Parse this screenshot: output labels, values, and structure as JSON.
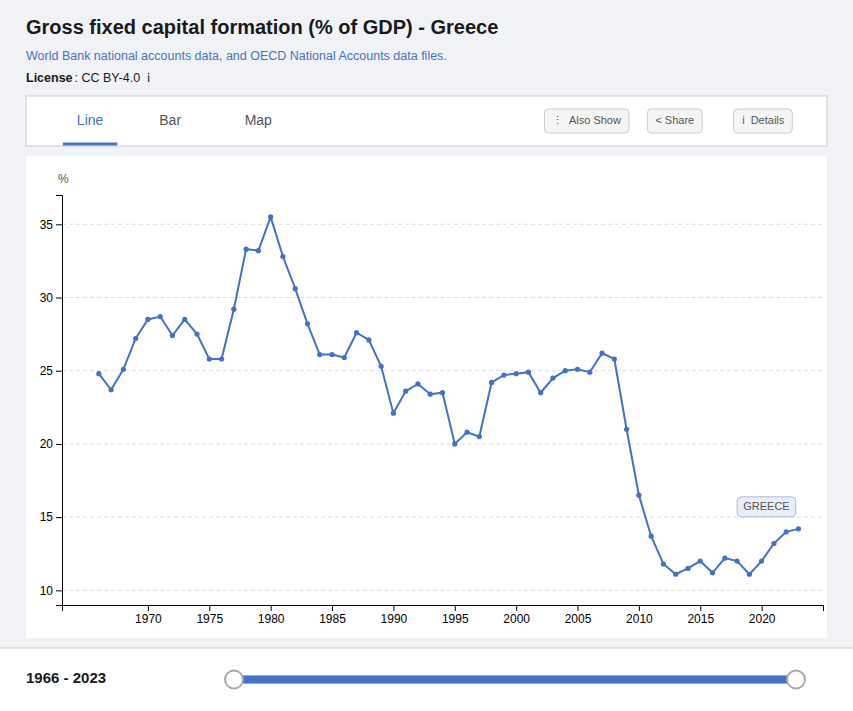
{
  "chart_data": {
    "type": "line",
    "title": "Gross fixed capital formation (% of GDP) - Greece",
    "subtitle": "World Bank national accounts data, and OECD National Accounts data files.",
    "ylabel": "%",
    "annotations": [
      "License",
      ": CC BY-4.0  ℹ",
      "Line",
      "Bar",
      "Map",
      "⋮  Also Show",
      "< Share",
      "ℹ  Details",
      "GREECE",
      "1966 - 2023"
    ],
    "color": "#4472c4",
    "marker": "circle",
    "grid": true,
    "xlim": [
      1963,
      2025
    ],
    "xticks": [
      1970,
      1975,
      1980,
      1985,
      1990,
      1995,
      2000,
      2005,
      2010,
      2015,
      2020
    ],
    "ylim": [
      9,
      37
    ],
    "yticks": [
      10,
      15,
      20,
      25,
      30,
      35
    ],
    "x": [
      1966,
      1967,
      1968,
      1969,
      1970,
      1971,
      1972,
      1973,
      1974,
      1975,
      1976,
      1977,
      1978,
      1979,
      1980,
      1981,
      1982,
      1983,
      1984,
      1985,
      1986,
      1987,
      1988,
      1989,
      1990,
      1991,
      1992,
      1993,
      1994,
      1995,
      1996,
      1997,
      1998,
      1999,
      2000,
      2001,
      2002,
      2003,
      2004,
      2005,
      2006,
      2007,
      2008,
      2009,
      2010,
      2011,
      2012,
      2013,
      2014,
      2015,
      2016,
      2017,
      2018,
      2019,
      2020,
      2021,
      2022,
      2023
    ],
    "values": [
      24.8,
      23.7,
      25.1,
      27.2,
      28.5,
      28.7,
      27.4,
      28.5,
      27.5,
      25.8,
      25.8,
      29.2,
      33.3,
      33.2,
      35.5,
      32.8,
      30.6,
      28.2,
      26.1,
      26.1,
      25.9,
      27.6,
      27.1,
      25.3,
      22.1,
      23.6,
      24.1,
      23.4,
      23.5,
      20.0,
      20.8,
      20.5,
      24.2,
      24.7,
      24.8,
      24.9,
      23.5,
      24.5,
      25.0,
      25.1,
      24.9,
      26.2,
      25.8,
      21.0,
      16.5,
      13.7,
      11.8,
      11.1,
      11.5,
      12.0,
      11.2,
      12.2,
      12.0,
      11.1,
      12.0,
      13.2,
      14.0,
      14.2
    ]
  }
}
